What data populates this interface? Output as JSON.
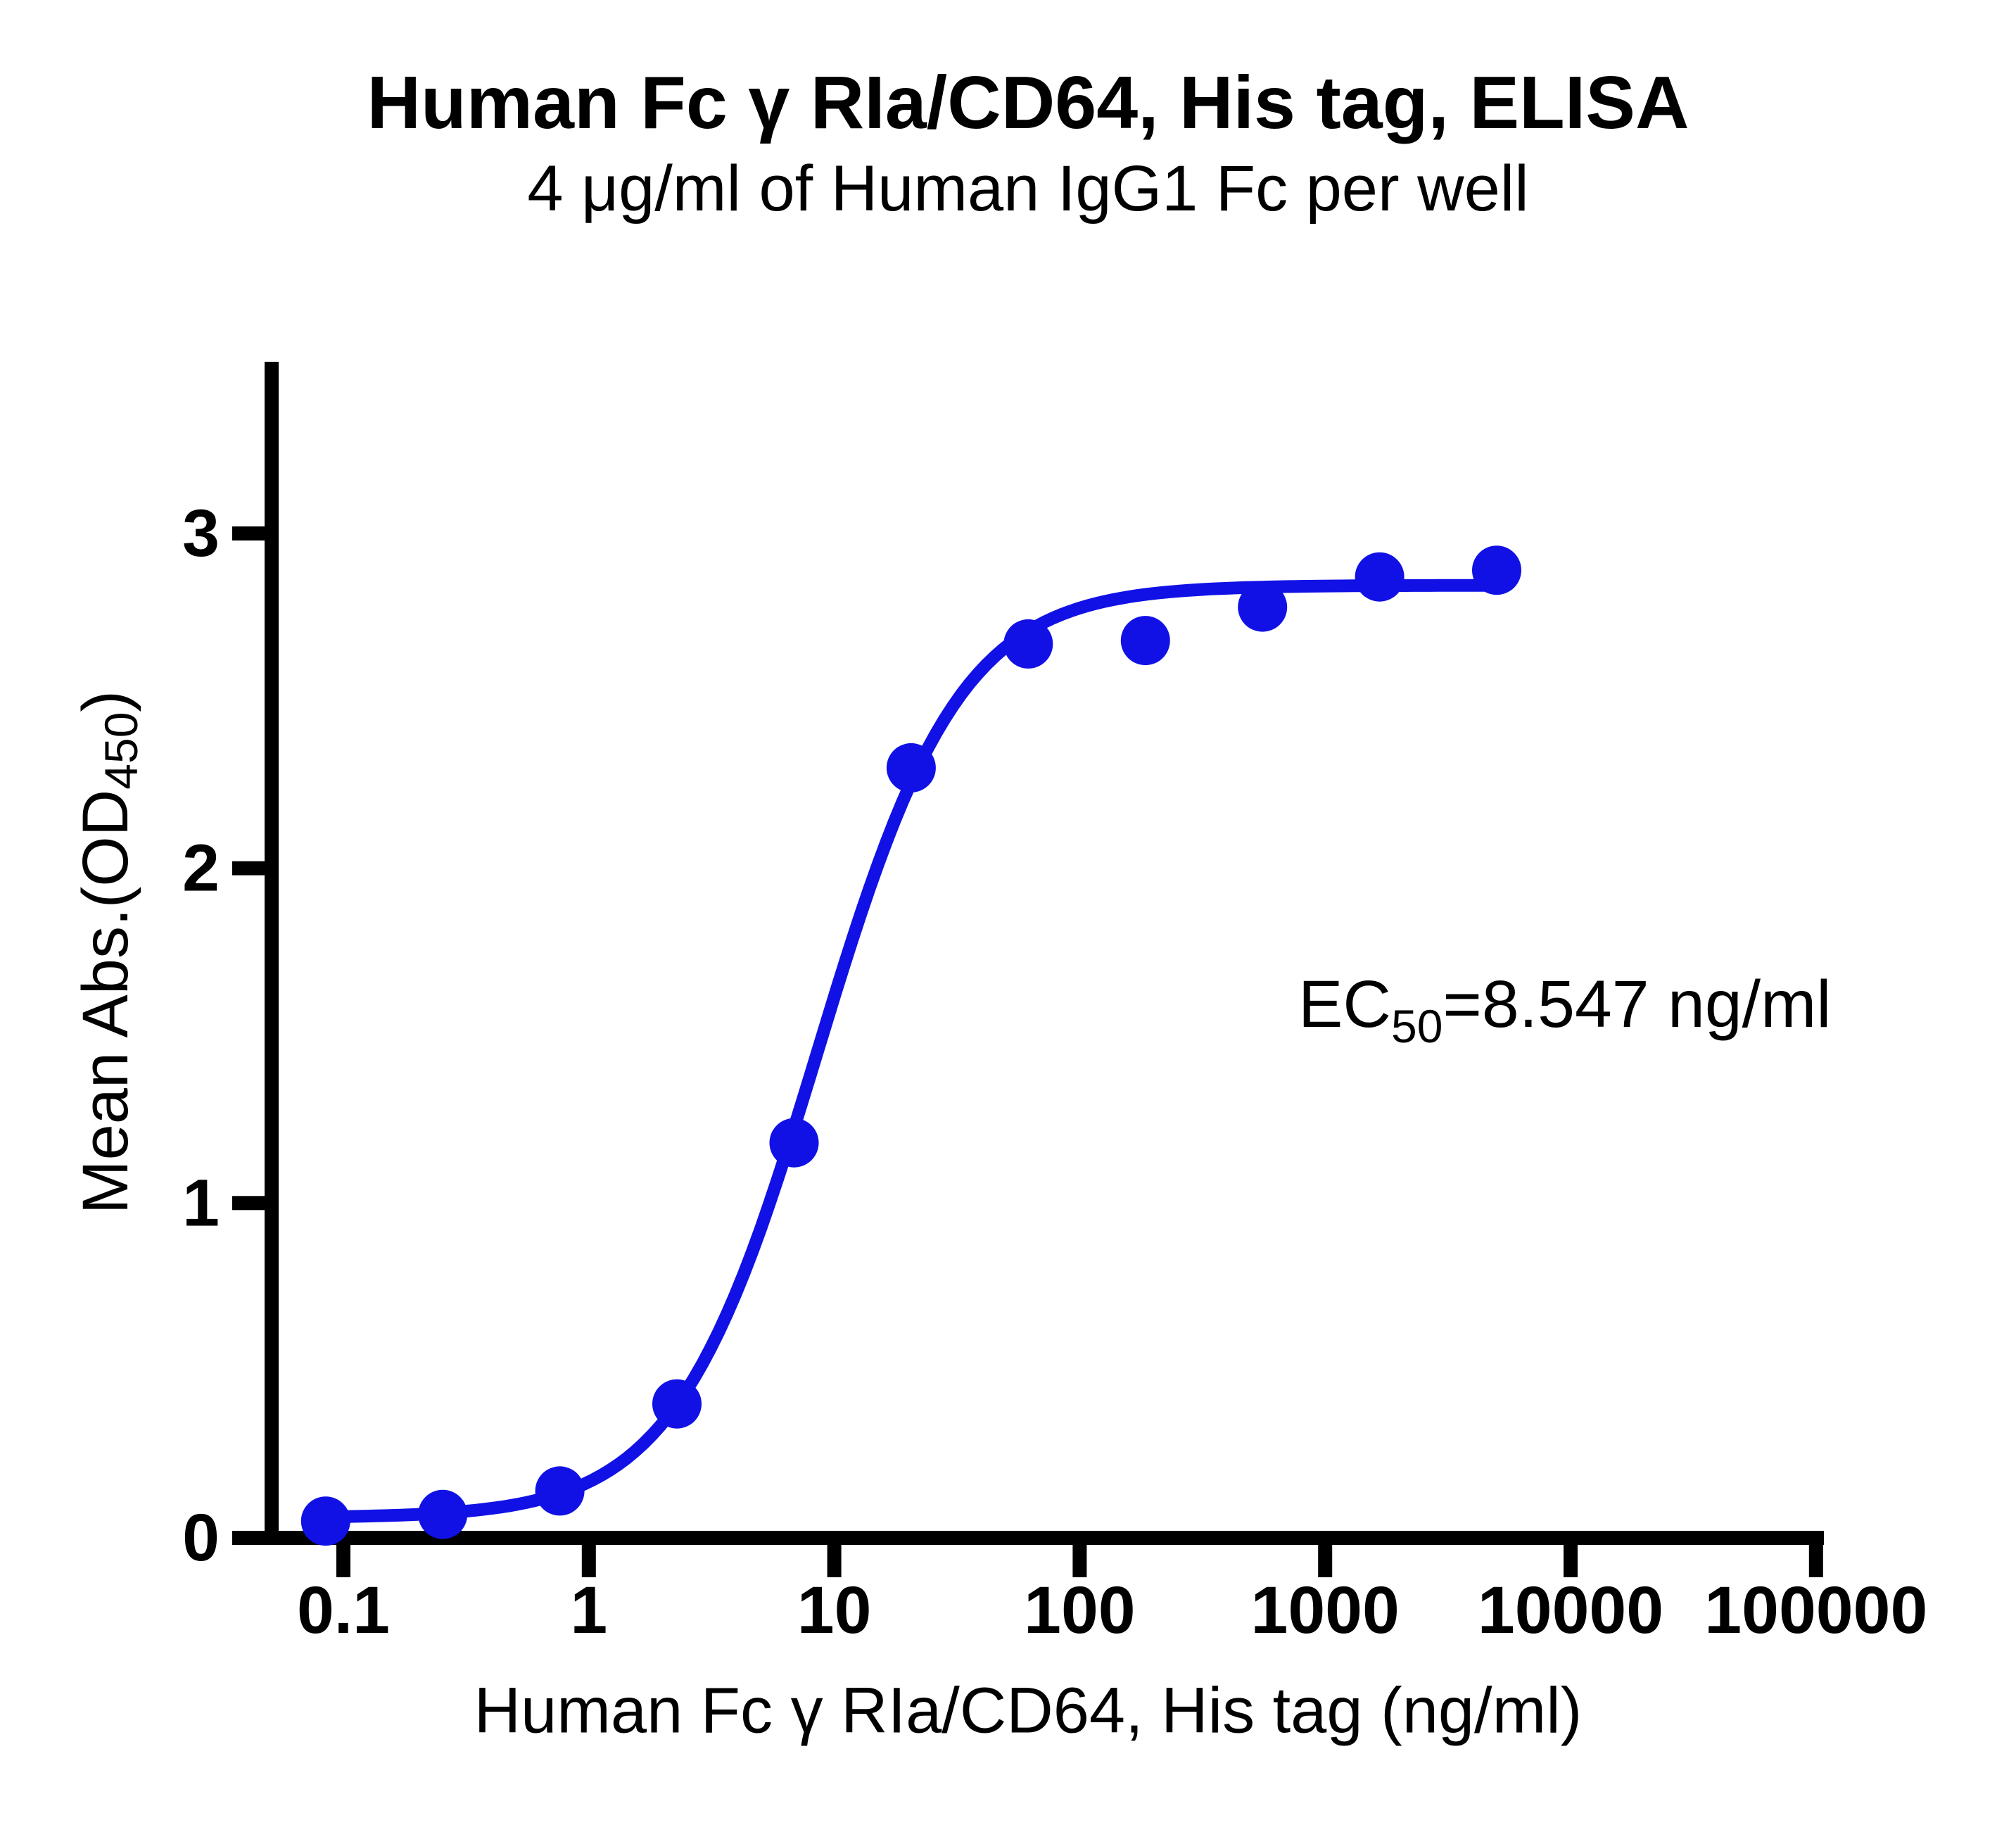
{
  "chart_data": {
    "type": "scatter",
    "title": "Human Fc γ RIa/CD64, His tag, ELISA",
    "subtitle": "4 μg/ml of Human IgG1 Fc per well",
    "xlabel": "Human Fc γ RIa/CD64, His tag (ng/ml)",
    "ylabel_parts": {
      "pre": "Mean Abs.(OD",
      "sub": "450",
      "post": ")"
    },
    "x_scale": "log10",
    "x_ticks": [
      0.1,
      1,
      10,
      100,
      1000,
      10000,
      100000
    ],
    "y_ticks": [
      0,
      1,
      2,
      3
    ],
    "xlim": [
      0.1,
      100000
    ],
    "ylim": [
      0,
      3.5
    ],
    "grid": false,
    "legend": false,
    "series": [
      {
        "name": "Human Fc γ RIa/CD64, His tag",
        "x": [
          0.0847,
          0.254,
          0.762,
          2.286,
          6.859,
          20.58,
          61.73,
          185.2,
          555.6,
          1666.7,
          5000
        ],
        "y": [
          0.05,
          0.07,
          0.14,
          0.4,
          1.18,
          2.3,
          2.67,
          2.68,
          2.78,
          2.87,
          2.89
        ]
      }
    ],
    "fit": {
      "model": "4PL dose-response",
      "bottom": 0.06,
      "top": 2.845,
      "ec50": 8.547,
      "hill": 1.5
    },
    "annotation_parts": {
      "pre": "EC",
      "sub": "50",
      "post": "=8.547 ng/ml"
    },
    "colors": {
      "series": "#1111E6",
      "axis": "#000000",
      "background": "#FFFFFF"
    }
  }
}
